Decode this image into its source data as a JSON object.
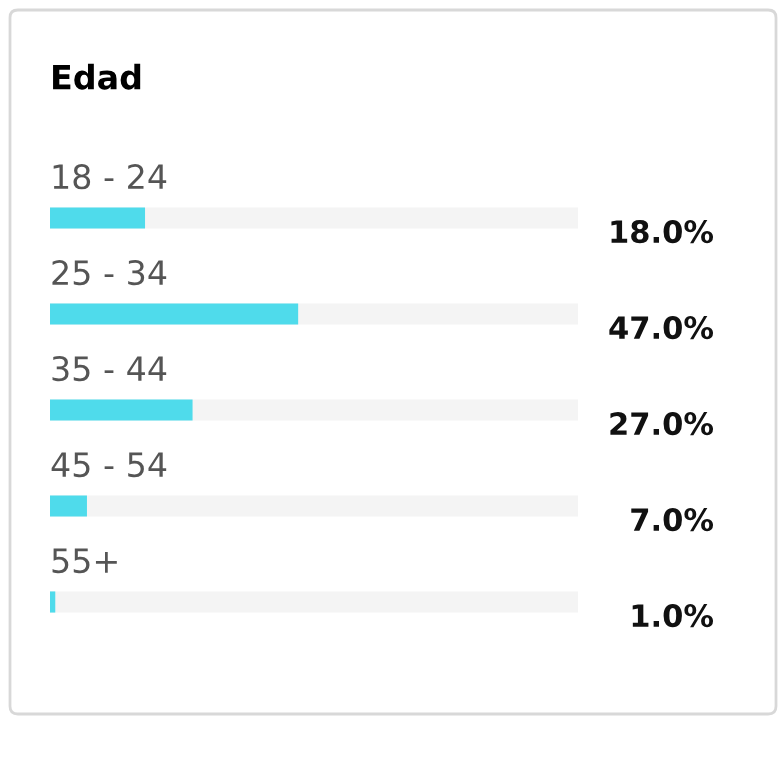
{
  "chart_data": {
    "type": "bar",
    "orientation": "horizontal",
    "title": "Edad",
    "categories": [
      "18 - 24",
      "25 - 34",
      "35 - 44",
      "45 - 54",
      "55+"
    ],
    "values": [
      18.0,
      47.0,
      27.0,
      7.0,
      1.0
    ],
    "value_labels": [
      "18.0%",
      "47.0%",
      "27.0%",
      "7.0%",
      "1.0%"
    ],
    "color": "#4fdbeb",
    "xlim": [
      0,
      100
    ],
    "tick_labels": false
  }
}
